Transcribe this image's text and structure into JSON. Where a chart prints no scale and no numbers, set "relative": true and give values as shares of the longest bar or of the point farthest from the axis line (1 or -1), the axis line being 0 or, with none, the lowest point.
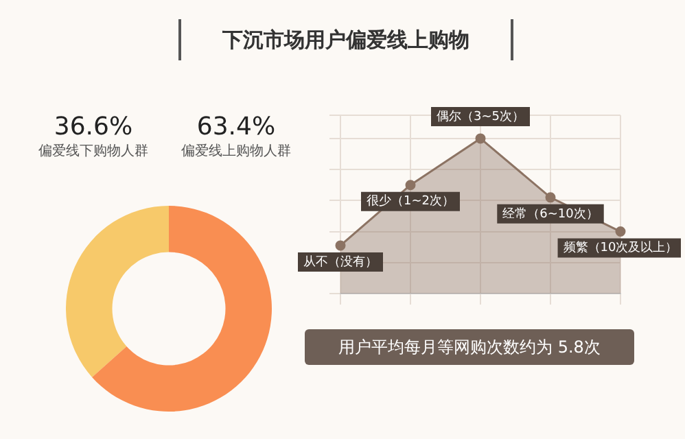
{
  "chart_data": [
    {
      "type": "donut",
      "title": "下沉市场用户偏爱线上购物",
      "categories": [
        "偏爱线下购物人群",
        "偏爱线上购物人群"
      ],
      "values": [
        36.6,
        63.4
      ],
      "colors": [
        "#f7c96a",
        "#f98e52"
      ],
      "value_labels": [
        "36.6%",
        "63.4%"
      ],
      "legend": false
    },
    {
      "type": "area",
      "categories": [
        "从不（没有）",
        "很少（1~2次）",
        "偶尔（3~5次）",
        "经常（6~10次）",
        "频繁（10次及以上）"
      ],
      "relative": true,
      "series": [
        {
          "color": "#8c7363",
          "values": [
            0.31,
            0.7,
            1,
            0.62,
            0.4
          ]
        }
      ],
      "marker": "circle",
      "grid": true,
      "tick_labels": false,
      "legend": false,
      "annotations": [
        "用户平均每月等网购次数约为 5.8次"
      ]
    }
  ]
}
